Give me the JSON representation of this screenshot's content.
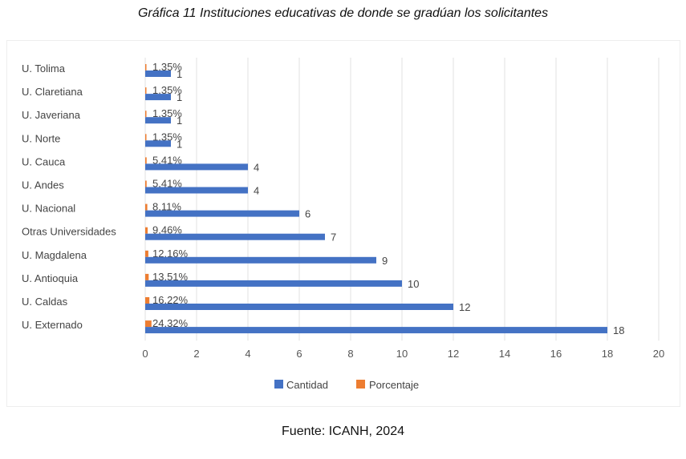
{
  "caption": "Gráfica 11 Instituciones educativas de donde se gradúan los solicitantes",
  "source": "Fuente: ICANH, 2024",
  "chart_data": {
    "type": "bar",
    "orientation": "horizontal",
    "categories": [
      "U. Tolima",
      "U. Claretiana",
      "U. Javeriana",
      "U. Norte",
      "U. Cauca",
      "U. Andes",
      "U. Nacional",
      "Otras Universidades",
      "U. Magdalena",
      "U. Antioquia",
      "U. Caldas",
      "U. Externado"
    ],
    "series": [
      {
        "name": "Cantidad",
        "color": "#4472c4",
        "values": [
          1,
          1,
          1,
          1,
          4,
          4,
          6,
          7,
          9,
          10,
          12,
          18
        ],
        "labels": [
          "1",
          "1",
          "1",
          "1",
          "4",
          "4",
          "6",
          "7",
          "9",
          "10",
          "12",
          "18"
        ]
      },
      {
        "name": "Porcentaje",
        "color": "#ed7d31",
        "values": [
          0.0135,
          0.0135,
          0.0135,
          0.0135,
          0.0541,
          0.0541,
          0.0811,
          0.0946,
          0.1216,
          0.1351,
          0.1622,
          0.2432
        ],
        "labels": [
          "1,35%",
          "1,35%",
          "1,35%",
          "1,35%",
          "5,41%",
          "5,41%",
          "8,11%",
          "9,46%",
          "12,16%",
          "13,51%",
          "16,22%",
          "24,32%"
        ]
      }
    ],
    "xlim": [
      0,
      20
    ],
    "xticks": [
      "0",
      "2",
      "4",
      "6",
      "8",
      "10",
      "12",
      "14",
      "16",
      "18",
      "20"
    ],
    "grid": true,
    "legend": "bottom"
  }
}
